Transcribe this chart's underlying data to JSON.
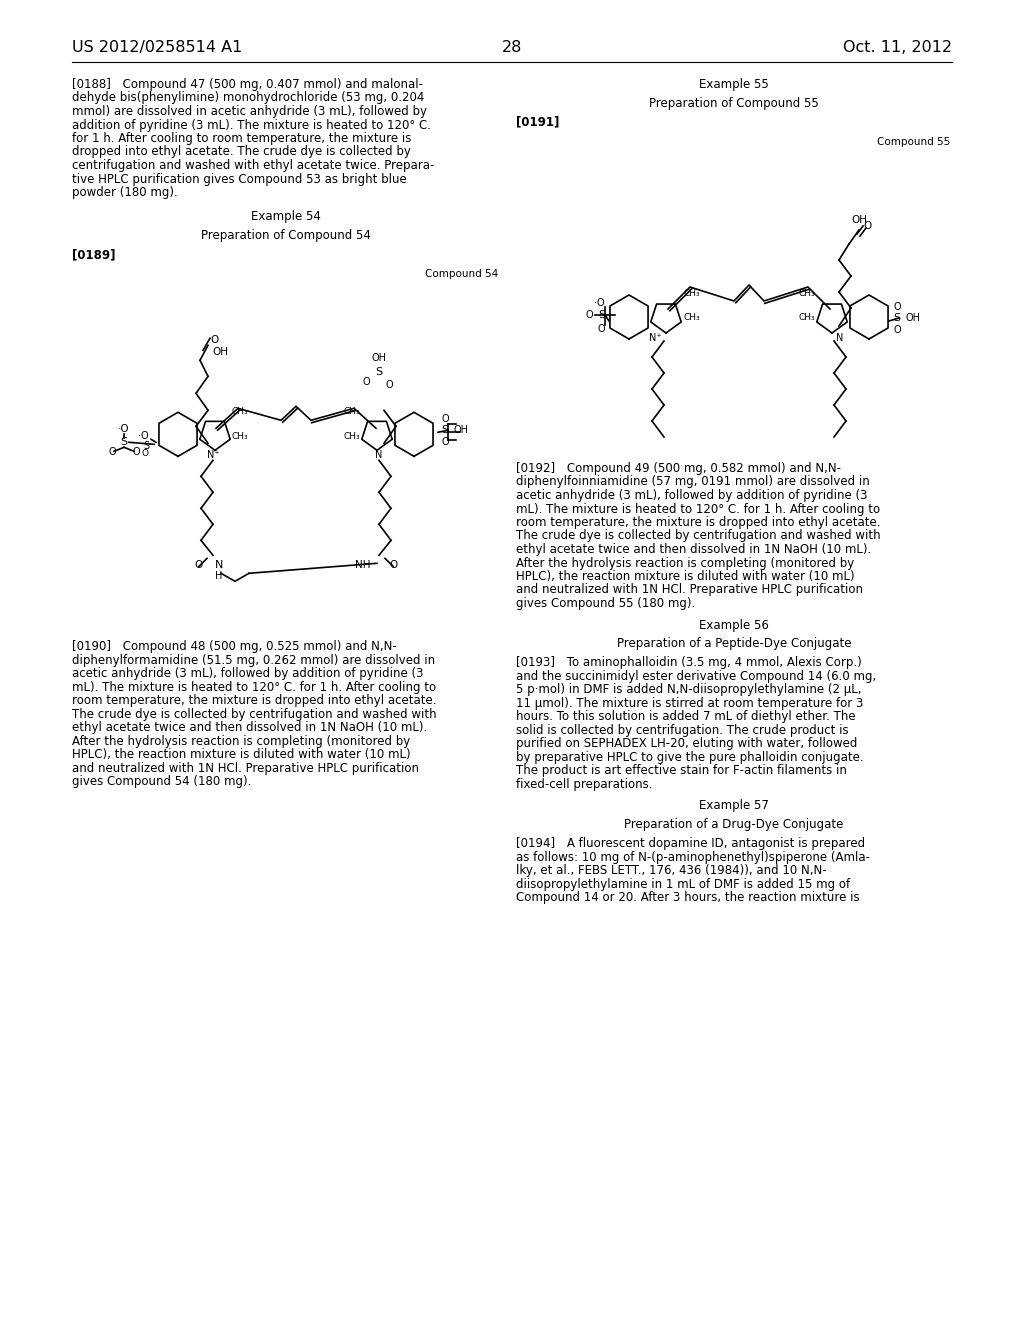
{
  "background_color": "#ffffff",
  "header_left": "US 2012/0258514 A1",
  "header_right": "Oct. 11, 2012",
  "page_number": "28",
  "body_font_size": 8.5,
  "para_0188": "[0188] Compound 47 (500 mg, 0.407 mmol) and malonal-\ndehyde bis(phenylimine) monohydrochloride (53 mg, 0.204\nmmol) are dissolved in acetic anhydride (3 mL), followed by\naddition of pyridine (3 mL). The mixture is heated to 120° C.\nfor 1 h. After cooling to room temperature, the mixture is\ndropped into ethyl acetate. The crude dye is collected by\ncentrifugation and washed with ethyl acetate twice. Prepara-\ntive HPLC purification gives Compound 53 as bright blue\npowder (180 mg).",
  "ex54": "Example 54",
  "prep54": "Preparation of Compound 54",
  "para_0189": "[0189]",
  "compound54_label": "Compound 54",
  "para_0190": "[0190] Compound 48 (500 mg, 0.525 mmol) and N,N-\ndiphenylformamidine (51.5 mg, 0.262 mmol) are dissolved in\nacetic anhydride (3 mL), followed by addition of pyridine (3\nmL). The mixture is heated to 120° C. for 1 h. After cooling to\nroom temperature, the mixture is dropped into ethyl acetate.\nThe crude dye is collected by centrifugation and washed with\nethyl acetate twice and then dissolved in 1N NaOH (10 mL).\nAfter the hydrolysis reaction is completing (monitored by\nHPLC), the reaction mixture is diluted with water (10 mL)\nand neutralized with 1N HCl. Preparative HPLC purification\ngives Compound 54 (180 mg).",
  "ex55": "Example 55",
  "prep55": "Preparation of Compound 55",
  "para_0191": "[0191]",
  "compound55_label": "Compound 55",
  "para_0192": "[0192] Compound 49 (500 mg, 0.582 mmol) and N,N-\ndiphenylfoinniamidine (57 mg, 0191 mmol) are dissolved in\nacetic anhydride (3 mL), followed by addition of pyridine (3\nmL). The mixture is heated to 120° C. for 1 h. After cooling to\nroom temperature, the mixture is dropped into ethyl acetate.\nThe crude dye is collected by centrifugation and washed with\nethyl acetate twice and then dissolved in 1N NaOH (10 mL).\nAfter the hydrolysis reaction is completing (monitored by\nHPLC), the reaction mixture is diluted with water (10 mL)\nand neutralized with 1N HCl. Preparative HPLC purification\ngives Compound 55 (180 mg).",
  "ex56": "Example 56",
  "prep56": "Preparation of a Peptide-Dye Conjugate",
  "para_0193": "[0193] To aminophalloidin (3.5 mg, 4 mmol, Alexis Corp.)\nand the succinimidyl ester derivative Compound 14 (6.0 mg,\n5 p·mol) in DMF is added N,N-diisopropylethylamine (2 μL,\n11 μmol). The mixture is stirred at room temperature for 3\nhours. To this solution is added 7 mL of diethyl ether. The\nsolid is collected by centrifugation. The crude product is\npurified on SEPHADEX LH-20, eluting with water, followed\nby preparative HPLC to give the pure phalloidin conjugate.\nThe product is art effective stain for F-actin filaments in\nfixed-cell preparations.",
  "ex57": "Example 57",
  "prep57": "Preparation of a Drug-Dye Conjugate",
  "para_0194": "[0194] A fluorescent dopamine ID, antagonist is prepared\nas follows: 10 mg of N-(p-aminophenethyl)spiperone (Amla-\nlky, et al., FEBS LETT., 176, 436 (1984)), and 10 N,N-\ndiisopropylethylamine in 1 mL of DMF is added 15 mg of\nCompound 14 or 20. After 3 hours, the reaction mixture is"
}
